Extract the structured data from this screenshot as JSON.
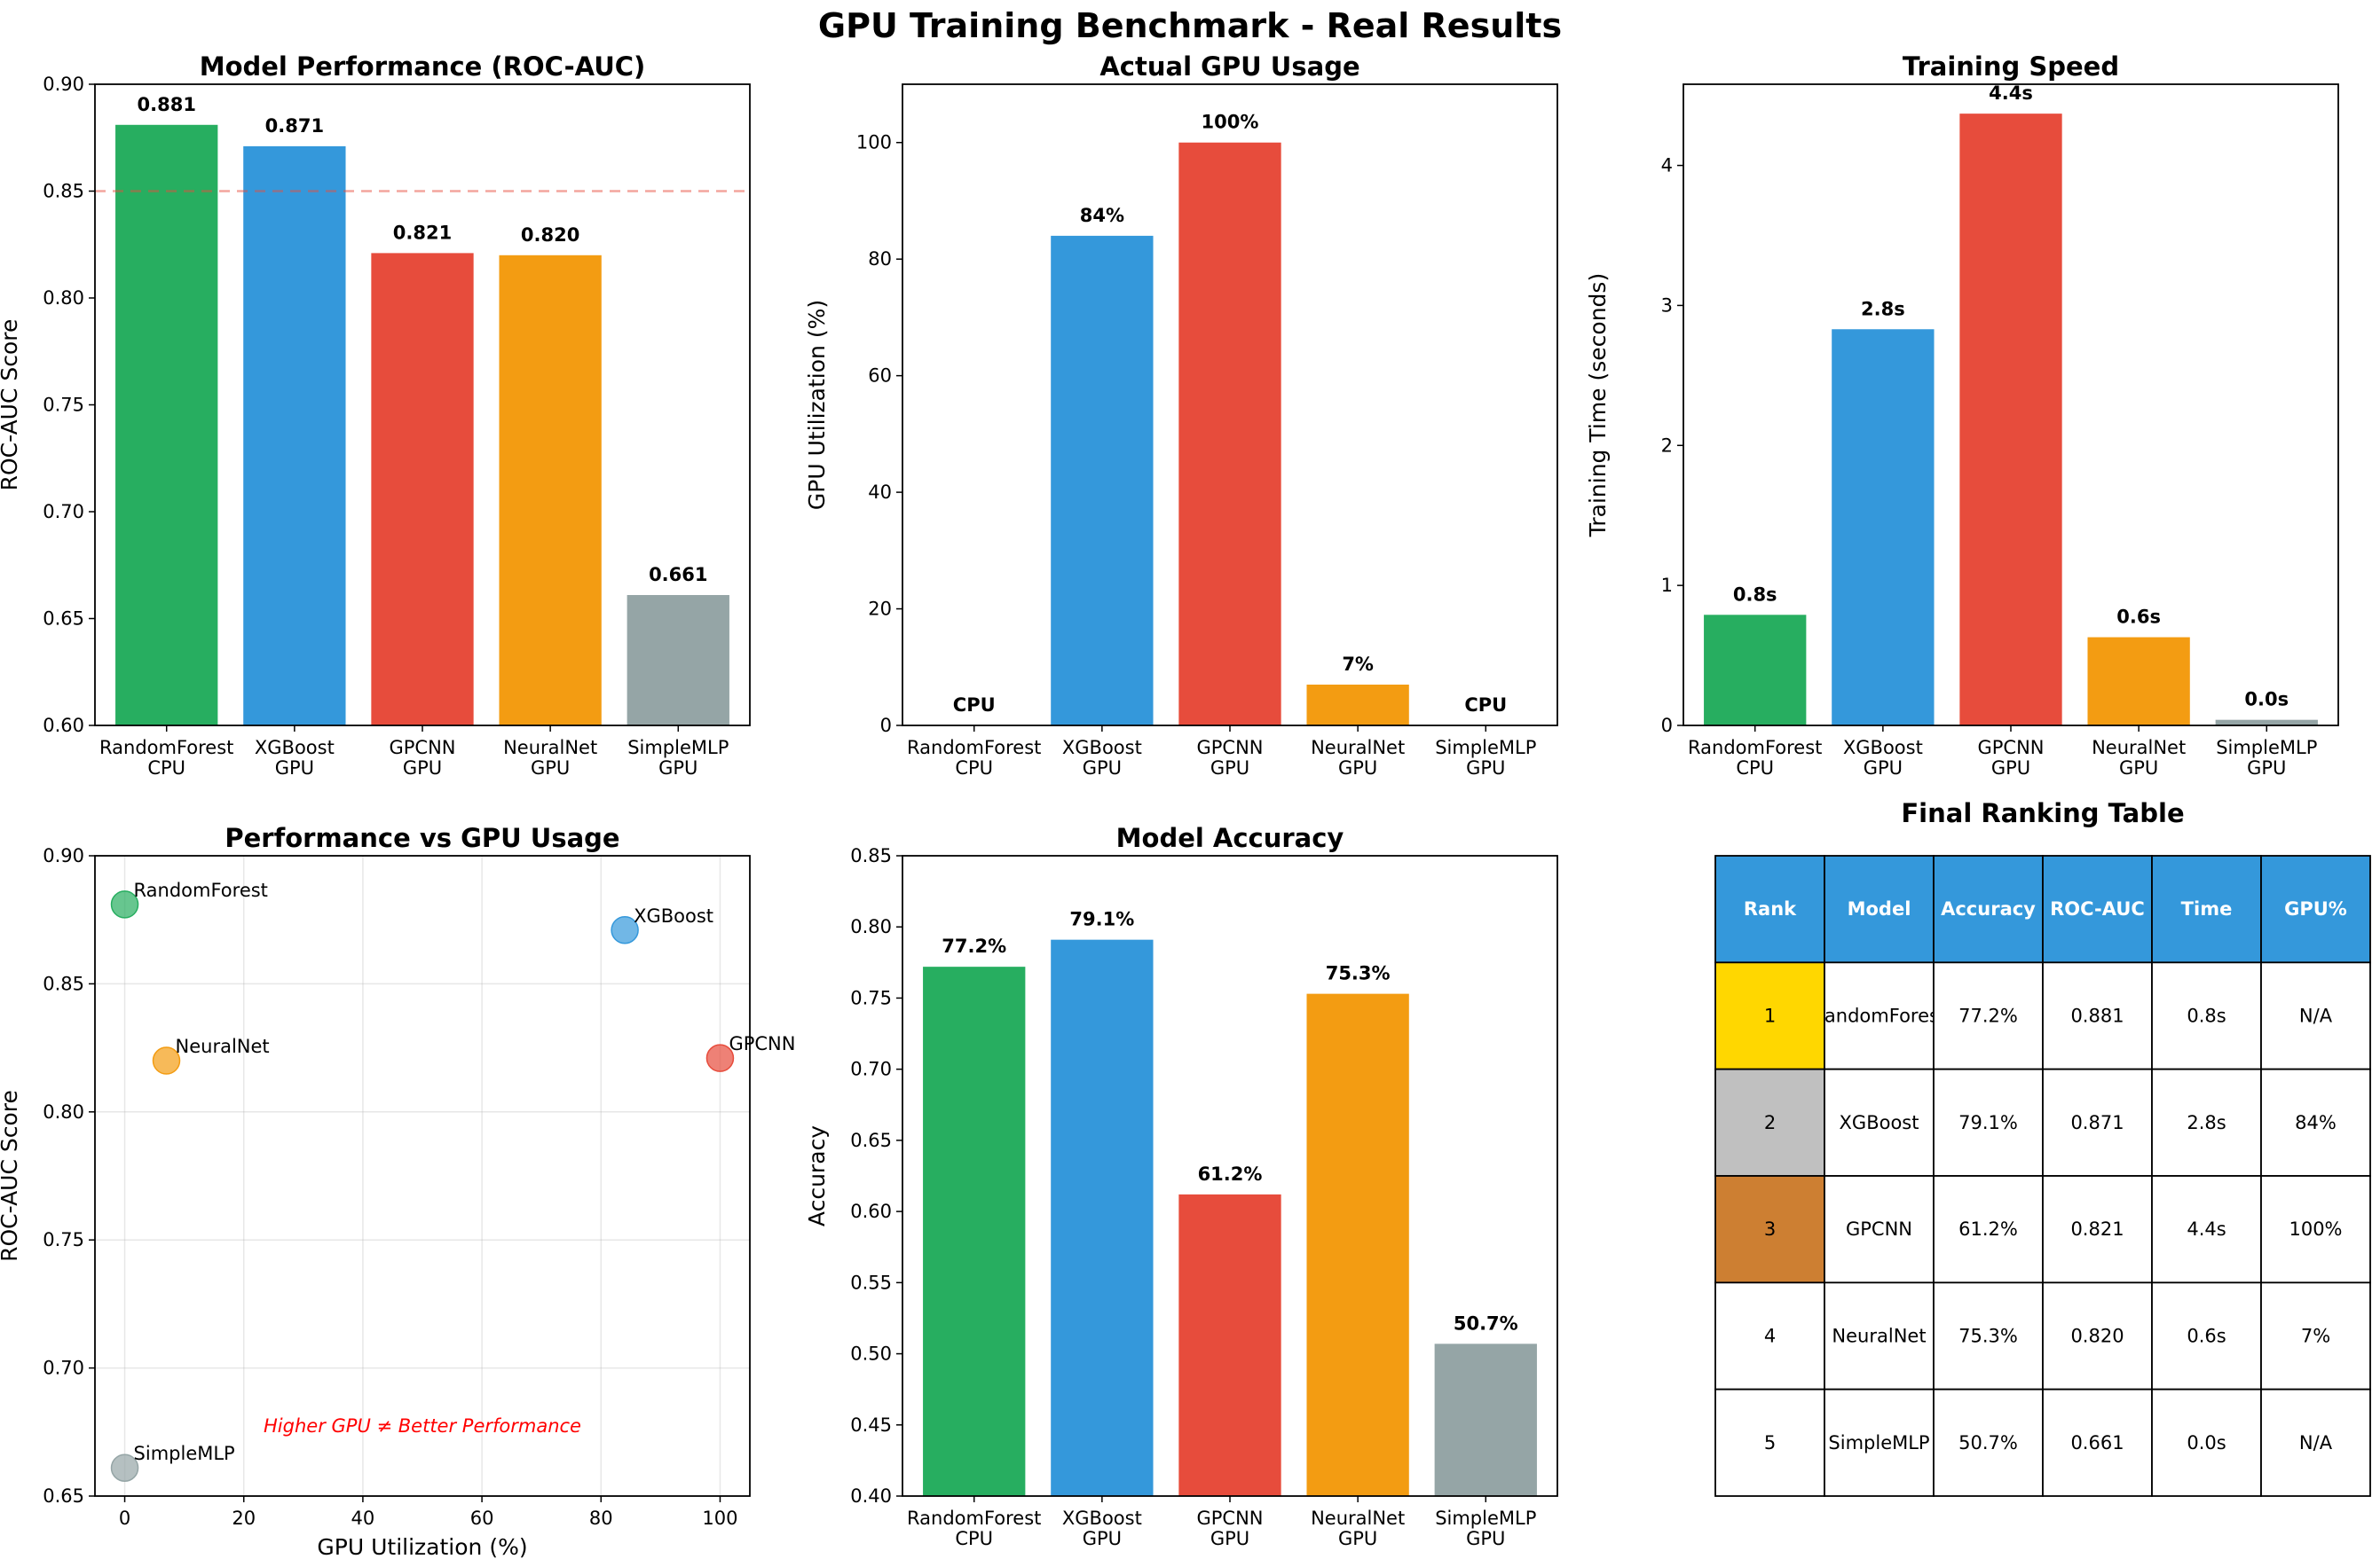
{
  "figure_title": "GPU Training Benchmark - Real Results",
  "colors": {
    "green": "#27ae60",
    "blue": "#3498db",
    "red": "#e74c3c",
    "orange": "#f39c12",
    "gray": "#95a5a6",
    "table_header": "#3498db",
    "gold": "#ffd700",
    "silver": "#c0c0c0",
    "bronze": "#cd7f32"
  },
  "chart_data": [
    {
      "type": "bar",
      "title": "Model Performance (ROC-AUC)",
      "xlabel": "",
      "ylabel": "ROC-AUC Score",
      "categories": [
        "RandomForest\nCPU",
        "XGBoost\nGPU",
        "GPCNN\nGPU",
        "NeuralNet\nGPU",
        "SimpleMLP\nGPU"
      ],
      "values": [
        0.881,
        0.871,
        0.821,
        0.82,
        0.661
      ],
      "value_labels": [
        "0.881",
        "0.871",
        "0.821",
        "0.820",
        "0.661"
      ],
      "ylim": [
        0.6,
        0.9
      ],
      "yticks": [
        "0.60",
        "0.65",
        "0.70",
        "0.75",
        "0.80",
        "0.85",
        "0.90"
      ],
      "reference_line": 0.85,
      "grid": false
    },
    {
      "type": "bar",
      "title": "Actual GPU Usage",
      "xlabel": "",
      "ylabel": "GPU Utilization (%)",
      "categories": [
        "RandomForest\nCPU",
        "XGBoost\nGPU",
        "GPCNN\nGPU",
        "NeuralNet\nGPU",
        "SimpleMLP\nGPU"
      ],
      "values": [
        0,
        84,
        100,
        7,
        0
      ],
      "value_labels": [
        "CPU",
        "84%",
        "100%",
        "7%",
        "CPU"
      ],
      "ylim": [
        0,
        110
      ],
      "yticks": [
        "0",
        "20",
        "40",
        "60",
        "80",
        "100"
      ],
      "grid": false
    },
    {
      "type": "bar",
      "title": "Training Speed",
      "xlabel": "",
      "ylabel": "Training Time (seconds)",
      "categories": [
        "RandomForest\nCPU",
        "XGBoost\nGPU",
        "GPCNN\nGPU",
        "NeuralNet\nGPU",
        "SimpleMLP\nGPU"
      ],
      "values": [
        0.79,
        2.83,
        4.37,
        0.63,
        0.04
      ],
      "value_labels": [
        "0.8s",
        "2.8s",
        "4.4s",
        "0.6s",
        "0.0s"
      ],
      "ylim": [
        0,
        4.58
      ],
      "yticks": [
        "0",
        "1",
        "2",
        "3",
        "4"
      ],
      "grid": false
    },
    {
      "type": "scatter",
      "title": "Performance vs GPU Usage",
      "xlabel": "GPU Utilization (%)",
      "ylabel": "ROC-AUC Score",
      "points": [
        {
          "label": "RandomForest",
          "x": 0,
          "y": 0.881
        },
        {
          "label": "XGBoost",
          "x": 84,
          "y": 0.871
        },
        {
          "label": "GPCNN",
          "x": 100,
          "y": 0.821
        },
        {
          "label": "NeuralNet",
          "x": 7,
          "y": 0.82
        },
        {
          "label": "SimpleMLP",
          "x": 0,
          "y": 0.661
        }
      ],
      "xlim": [
        -5,
        105
      ],
      "ylim": [
        0.65,
        0.9
      ],
      "xticks": [
        "0",
        "20",
        "40",
        "60",
        "80",
        "100"
      ],
      "yticks": [
        "0.65",
        "0.70",
        "0.75",
        "0.80",
        "0.85",
        "0.90"
      ],
      "annotation": "Higher GPU ≠ Better Performance",
      "grid": true
    },
    {
      "type": "bar",
      "title": "Model Accuracy",
      "xlabel": "",
      "ylabel": "Accuracy",
      "categories": [
        "RandomForest\nCPU",
        "XGBoost\nGPU",
        "GPCNN\nGPU",
        "NeuralNet\nGPU",
        "SimpleMLP\nGPU"
      ],
      "values": [
        0.772,
        0.791,
        0.612,
        0.753,
        0.507
      ],
      "value_labels": [
        "77.2%",
        "79.1%",
        "61.2%",
        "75.3%",
        "50.7%"
      ],
      "ylim": [
        0.4,
        0.85
      ],
      "yticks": [
        "0.40",
        "0.45",
        "0.50",
        "0.55",
        "0.60",
        "0.65",
        "0.70",
        "0.75",
        "0.80",
        "0.85"
      ],
      "grid": false
    },
    {
      "type": "table",
      "title": "Final Ranking Table",
      "columns": [
        "Rank",
        "Model",
        "Accuracy",
        "ROC-AUC",
        "Time",
        "GPU%"
      ],
      "rows": [
        [
          "1",
          "RandomForest",
          "77.2%",
          "0.881",
          "0.8s",
          "N/A"
        ],
        [
          "2",
          "XGBoost",
          "79.1%",
          "0.871",
          "2.8s",
          "84%"
        ],
        [
          "3",
          "GPCNN",
          "61.2%",
          "0.821",
          "4.4s",
          "100%"
        ],
        [
          "4",
          "NeuralNet",
          "75.3%",
          "0.820",
          "0.6s",
          "7%"
        ],
        [
          "5",
          "SimpleMLP",
          "50.7%",
          "0.661",
          "0.0s",
          "N/A"
        ]
      ],
      "rank_colors": [
        "gold",
        "silver",
        "bronze",
        "",
        ""
      ]
    }
  ]
}
